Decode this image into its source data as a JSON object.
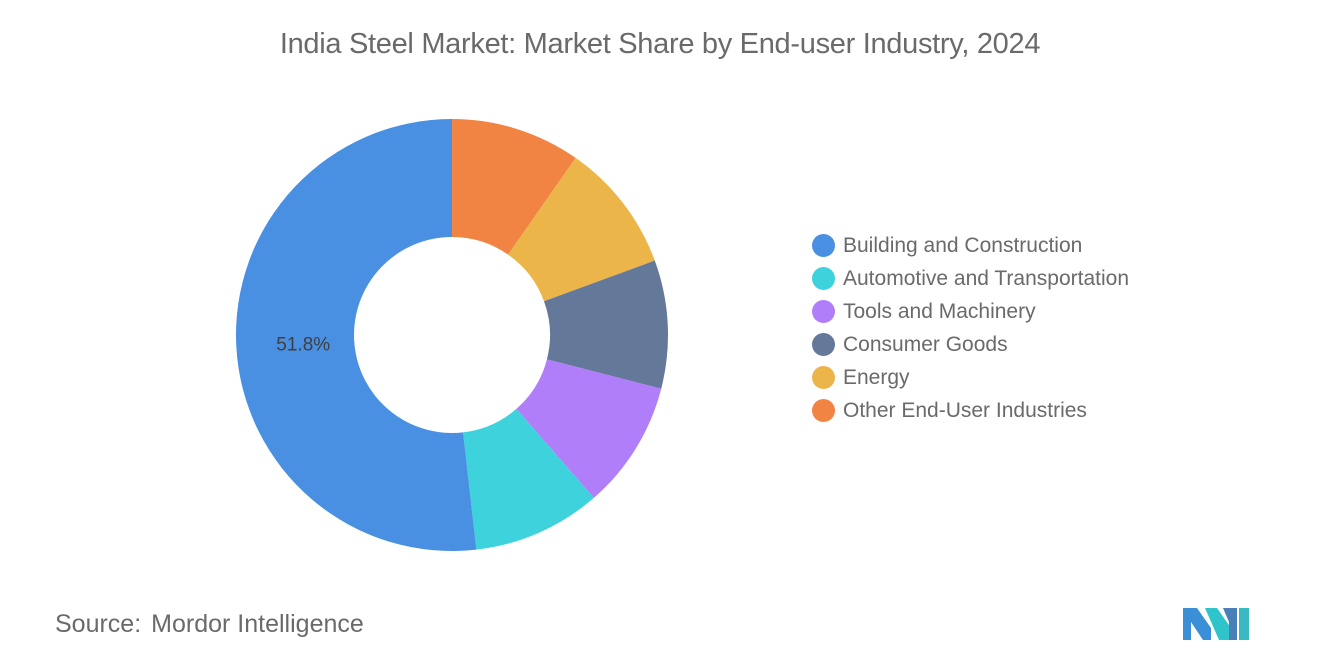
{
  "title": "India Steel Market: Market Share by End-user Industry, 2024",
  "source": {
    "label": "Source:",
    "value": "Mordor Intelligence"
  },
  "chart_data": {
    "type": "pie",
    "subtype": "donut",
    "title": "India Steel Market: Market Share by End-user Industry, 2024",
    "categories": [
      "Building and Construction",
      "Automotive and Transportation",
      "Tools and Machinery",
      "Consumer Goods",
      "Energy",
      "Other End-User Industries"
    ],
    "values": [
      51.8,
      9.6,
      9.6,
      9.6,
      9.7,
      9.7
    ],
    "colors": [
      "#4a90e2",
      "#3ed2dc",
      "#b07ef8",
      "#647899",
      "#ebb54a",
      "#f28443"
    ],
    "data_labels": [
      "51.8%",
      "",
      "",
      "",
      "",
      ""
    ],
    "legend_position": "right"
  },
  "logo": {
    "name": "mordor-intelligence-logo"
  }
}
